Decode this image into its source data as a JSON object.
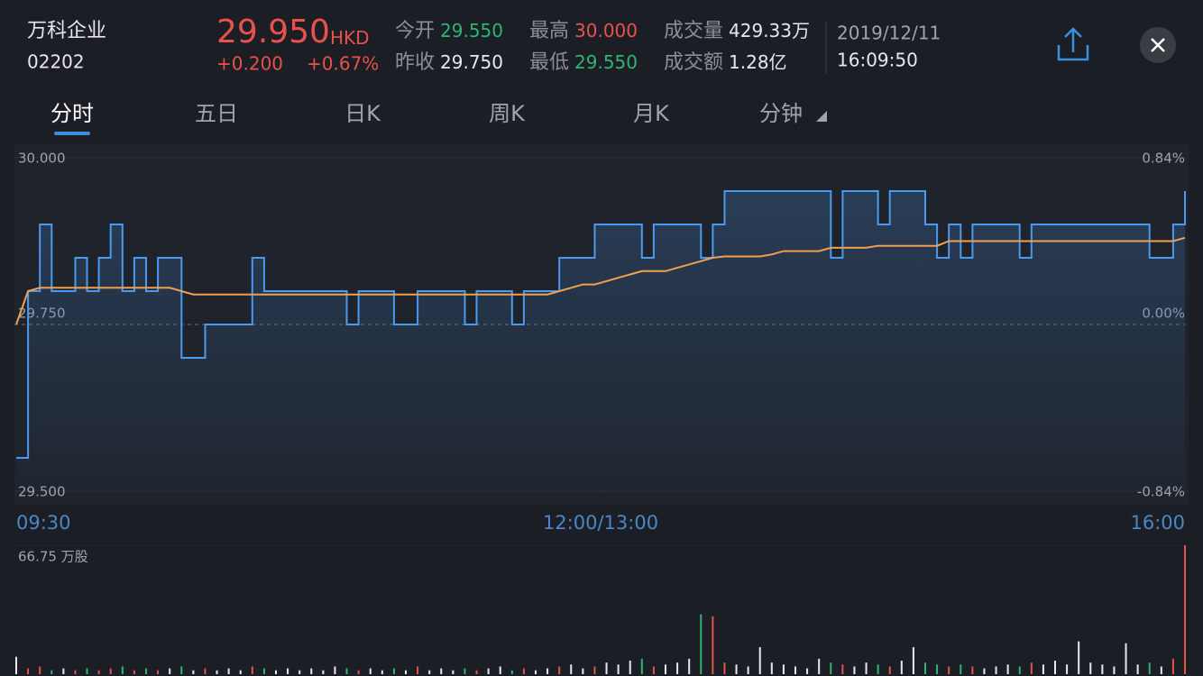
{
  "header": {
    "name": "万科企业",
    "code": "02202",
    "price": "29.950",
    "currency": "HKD",
    "change": "+0.200",
    "change_pct": "+0.67%",
    "stats": [
      {
        "label": "今开",
        "value": "29.550",
        "color": "#2bb673"
      },
      {
        "label": "昨收",
        "value": "29.750",
        "color": "#e6e8ec"
      },
      {
        "label": "最高",
        "value": "30.000",
        "color": "#e8524a"
      },
      {
        "label": "最低",
        "value": "29.550",
        "color": "#2bb673"
      },
      {
        "label": "成交量",
        "value": "429.33万",
        "color": "#e6e8ec"
      },
      {
        "label": "成交额",
        "value": "1.28亿",
        "color": "#e6e8ec"
      }
    ],
    "date": "2019/12/11",
    "time": "16:09:50"
  },
  "tabs": [
    "分时",
    "五日",
    "日K",
    "周K",
    "月K",
    "分钟"
  ],
  "chart_data": [
    {
      "type": "line",
      "series": [
        {
          "name": "价格",
          "color": "#4a9bf0",
          "values": [
            29.55,
            29.8,
            29.9,
            29.8,
            29.8,
            29.85,
            29.8,
            29.85,
            29.9,
            29.8,
            29.85,
            29.8,
            29.85,
            29.85,
            29.7,
            29.7,
            29.75,
            29.75,
            29.75,
            29.75,
            29.85,
            29.8,
            29.8,
            29.8,
            29.8,
            29.8,
            29.8,
            29.8,
            29.75,
            29.8,
            29.8,
            29.8,
            29.75,
            29.75,
            29.8,
            29.8,
            29.8,
            29.8,
            29.75,
            29.8,
            29.8,
            29.8,
            29.75,
            29.8,
            29.8,
            29.8,
            29.85,
            29.85,
            29.85,
            29.9,
            29.9,
            29.9,
            29.9,
            29.85,
            29.9,
            29.9,
            29.9,
            29.9,
            29.85,
            29.9,
            29.95,
            29.95,
            29.95,
            29.95,
            29.95,
            29.95,
            29.95,
            29.95,
            29.95,
            29.85,
            29.95,
            29.95,
            29.95,
            29.9,
            29.95,
            29.95,
            29.95,
            29.9,
            29.85,
            29.9,
            29.85,
            29.9,
            29.9,
            29.9,
            29.9,
            29.85,
            29.9,
            29.9,
            29.9,
            29.9,
            29.9,
            29.9,
            29.9,
            29.9,
            29.9,
            29.9,
            29.85,
            29.85,
            29.9,
            29.95
          ]
        },
        {
          "name": "均价",
          "color": "#f0a050",
          "values": [
            29.75,
            29.8,
            29.805,
            29.805,
            29.805,
            29.805,
            29.805,
            29.805,
            29.805,
            29.805,
            29.805,
            29.805,
            29.805,
            29.805,
            29.8,
            29.795,
            29.795,
            29.795,
            29.795,
            29.795,
            29.795,
            29.795,
            29.795,
            29.795,
            29.795,
            29.795,
            29.795,
            29.795,
            29.795,
            29.795,
            29.795,
            29.795,
            29.795,
            29.795,
            29.795,
            29.795,
            29.795,
            29.795,
            29.795,
            29.795,
            29.795,
            29.795,
            29.795,
            29.795,
            29.795,
            29.795,
            29.8,
            29.805,
            29.81,
            29.81,
            29.815,
            29.82,
            29.825,
            29.83,
            29.83,
            29.83,
            29.835,
            29.84,
            29.845,
            29.85,
            29.852,
            29.852,
            29.852,
            29.852,
            29.855,
            29.86,
            29.86,
            29.86,
            29.86,
            29.865,
            29.865,
            29.865,
            29.865,
            29.868,
            29.868,
            29.868,
            29.868,
            29.868,
            29.868,
            29.875,
            29.875,
            29.875,
            29.875,
            29.875,
            29.875,
            29.875,
            29.875,
            29.875,
            29.875,
            29.875,
            29.875,
            29.875,
            29.875,
            29.875,
            29.875,
            29.875,
            29.875,
            29.875,
            29.875,
            29.88
          ]
        }
      ],
      "xlim": [
        0,
        99
      ],
      "xticks": [
        {
          "value": 0,
          "label": "09:30"
        },
        {
          "value": 49.5,
          "label": "12:00/13:00"
        },
        {
          "value": 99,
          "label": "16:00"
        }
      ],
      "ylim": [
        29.5,
        30
      ],
      "yticks": [
        {
          "value": 30,
          "label": "30.000"
        },
        {
          "value": 29.75,
          "label": "29.750"
        },
        {
          "value": 29.5,
          "label": "29.500"
        }
      ],
      "y2lim": [
        -0.84,
        0.84
      ],
      "y2ticks": [
        {
          "value": 0.84,
          "label": "0.84%"
        },
        {
          "value": 0,
          "label": "0.00%"
        },
        {
          "value": -0.84,
          "label": "-0.84%"
        }
      ]
    },
    {
      "type": "bar",
      "values": [
        9,
        3,
        4,
        2,
        3,
        2,
        3,
        2,
        3,
        4,
        2,
        3,
        2,
        3,
        4,
        2,
        3,
        2,
        3,
        2,
        4,
        3,
        2,
        3,
        2,
        3,
        2,
        4,
        3,
        2,
        3,
        2,
        3,
        2,
        4,
        2,
        3,
        2,
        3,
        2,
        3,
        4,
        2,
        3,
        2,
        3,
        4,
        5,
        3,
        4,
        6,
        5,
        7,
        8,
        4,
        5,
        6,
        8,
        31,
        30,
        6,
        5,
        4,
        14,
        6,
        5,
        4,
        3,
        8,
        6,
        5,
        4,
        6,
        5,
        4,
        7,
        14,
        6,
        5,
        4,
        5,
        4,
        3,
        4,
        5,
        4,
        6,
        5,
        7,
        5,
        17,
        6,
        5,
        4,
        16,
        5,
        6,
        4,
        8,
        66.75
      ],
      "ylim": [
        0,
        66.75
      ],
      "yticks": [
        {
          "value": 66.75,
          "label": "66.75 万股"
        }
      ]
    }
  ]
}
